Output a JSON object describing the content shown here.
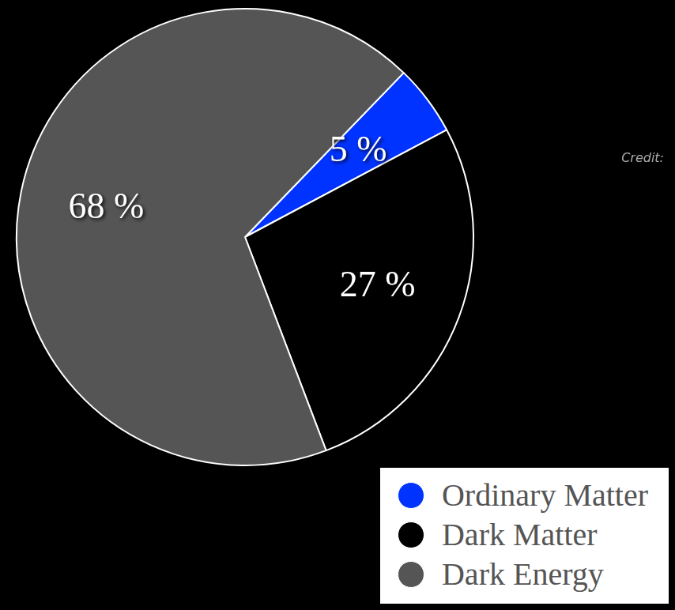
{
  "chart_data": {
    "type": "pie",
    "categories": [
      "Ordinary Matter",
      "Dark Matter",
      "Dark Energy"
    ],
    "values": [
      5,
      27,
      68
    ],
    "value_labels": [
      "5 %",
      "27 %",
      "68 %"
    ],
    "colors": [
      "#0033ff",
      "#000000",
      "#555555"
    ],
    "data_labels": true,
    "legend": "bottom-right",
    "annotations": [
      "Credit:"
    ]
  }
}
